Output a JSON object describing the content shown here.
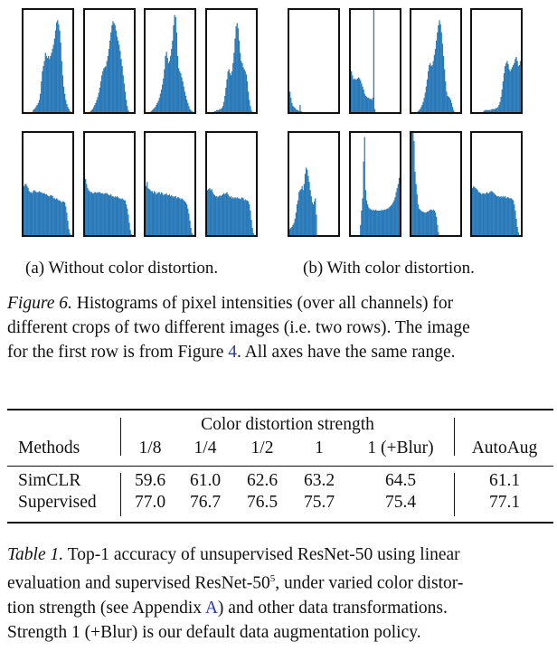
{
  "chart_data": {
    "type": "histogram-grid",
    "title": "Histograms of pixel intensities (over all channels)",
    "note": "All axes have the same range",
    "bar_color": "#2a7ab9",
    "panels": [
      {
        "group": "a",
        "row": 1,
        "col": 1,
        "values": [
          0,
          0,
          0,
          0,
          0,
          0,
          0,
          0,
          0,
          0.02,
          0.03,
          0.04,
          0.06,
          0.07,
          0.09,
          0.12,
          0.18,
          0.3,
          0.4,
          0.45,
          0.5,
          0.58,
          0.55,
          0.53,
          0.55,
          0.52,
          0.55,
          0.58,
          0.62,
          0.66,
          0.72,
          0.8,
          0.88,
          0.9,
          0.86,
          0.8,
          0.68,
          0.5,
          0.36,
          0.25,
          0.18,
          0.12,
          0.08,
          0.05,
          0.03,
          0.01,
          0,
          0
        ]
      },
      {
        "group": "a",
        "row": 1,
        "col": 2,
        "values": [
          0,
          0,
          0,
          0,
          0,
          0.01,
          0.02,
          0.03,
          0.05,
          0.07,
          0.09,
          0.12,
          0.15,
          0.19,
          0.24,
          0.3,
          0.36,
          0.4,
          0.43,
          0.44,
          0.45,
          0.5,
          0.55,
          0.62,
          0.7,
          0.78,
          0.85,
          0.89,
          0.87,
          0.85,
          0.8,
          0.74,
          0.7,
          0.66,
          0.6,
          0.52,
          0.45,
          0.36,
          0.28,
          0.2,
          0.12,
          0.06,
          0.02,
          0,
          0,
          0,
          0,
          0
        ]
      },
      {
        "group": "a",
        "row": 1,
        "col": 3,
        "values": [
          0,
          0,
          0,
          0,
          0,
          0.01,
          0.02,
          0.03,
          0.04,
          0.05,
          0.07,
          0.09,
          0.11,
          0.14,
          0.18,
          0.22,
          0.27,
          0.33,
          0.42,
          0.55,
          0.59,
          0.53,
          0.48,
          0.5,
          0.55,
          0.62,
          0.7,
          0.85,
          0.95,
          0.93,
          0.78,
          0.55,
          0.43,
          0.4,
          0.38,
          0.34,
          0.3,
          0.25,
          0.2,
          0.16,
          0.12,
          0.09,
          0.06,
          0.03,
          0.02,
          0.01,
          0,
          0
        ]
      },
      {
        "group": "a",
        "row": 1,
        "col": 4,
        "values": [
          0,
          0,
          0,
          0,
          0,
          0,
          0,
          0.01,
          0.01,
          0.02,
          0.02,
          0.02,
          0.03,
          0.03,
          0.04,
          0.06,
          0.1,
          0.16,
          0.24,
          0.32,
          0.4,
          0.42,
          0.38,
          0.36,
          0.4,
          0.48,
          0.58,
          0.72,
          0.84,
          0.87,
          0.82,
          0.7,
          0.58,
          0.5,
          0.48,
          0.44,
          0.42,
          0.4,
          0.37,
          0.3,
          0.2,
          0.12,
          0.06,
          0.02,
          0,
          0,
          0,
          0
        ]
      },
      {
        "group": "a",
        "row": 2,
        "col": 1,
        "values": [
          0.48,
          0.5,
          0.5,
          0.48,
          0.46,
          0.43,
          0.42,
          0.42,
          0.41,
          0.43,
          0.44,
          0.43,
          0.42,
          0.42,
          0.42,
          0.43,
          0.42,
          0.42,
          0.41,
          0.41,
          0.41,
          0.4,
          0.4,
          0.39,
          0.38,
          0.38,
          0.39,
          0.39,
          0.38,
          0.36,
          0.36,
          0.35,
          0.36,
          0.35,
          0.34,
          0.34,
          0.33,
          0.32,
          0.33,
          0.33,
          0.32,
          0.28,
          0.22,
          0.14,
          0.06,
          0.02,
          0,
          0
        ]
      },
      {
        "group": "a",
        "row": 2,
        "col": 2,
        "values": [
          0.55,
          0.5,
          0.46,
          0.44,
          0.43,
          0.42,
          0.42,
          0.41,
          0.41,
          0.42,
          0.42,
          0.41,
          0.42,
          0.42,
          0.42,
          0.41,
          0.41,
          0.41,
          0.4,
          0.41,
          0.41,
          0.41,
          0.4,
          0.39,
          0.39,
          0.4,
          0.38,
          0.38,
          0.37,
          0.38,
          0.37,
          0.38,
          0.37,
          0.36,
          0.36,
          0.35,
          0.36,
          0.35,
          0.34,
          0.34,
          0.3,
          0.26,
          0.2,
          0.12,
          0.05,
          0.01,
          0,
          0
        ]
      },
      {
        "group": "a",
        "row": 2,
        "col": 3,
        "values": [
          0.48,
          0.52,
          0.46,
          0.45,
          0.44,
          0.43,
          0.43,
          0.41,
          0.43,
          0.42,
          0.4,
          0.41,
          0.42,
          0.42,
          0.4,
          0.42,
          0.41,
          0.39,
          0.4,
          0.4,
          0.41,
          0.39,
          0.39,
          0.4,
          0.38,
          0.39,
          0.38,
          0.37,
          0.38,
          0.38,
          0.36,
          0.37,
          0.37,
          0.36,
          0.35,
          0.36,
          0.35,
          0.34,
          0.33,
          0.32,
          0.3,
          0.26,
          0.21,
          0.14,
          0.07,
          0.02,
          0,
          0
        ]
      },
      {
        "group": "a",
        "row": 2,
        "col": 4,
        "values": [
          0.44,
          0.45,
          0.46,
          0.44,
          0.45,
          0.42,
          0.4,
          0.39,
          0.38,
          0.38,
          0.37,
          0.38,
          0.39,
          0.38,
          0.39,
          0.4,
          0.41,
          0.4,
          0.41,
          0.42,
          0.4,
          0.38,
          0.37,
          0.38,
          0.36,
          0.37,
          0.36,
          0.37,
          0.36,
          0.37,
          0.36,
          0.36,
          0.35,
          0.36,
          0.37,
          0.36,
          0.34,
          0.35,
          0.34,
          0.34,
          0.33,
          0.3,
          0.24,
          0.15,
          0.07,
          0.02,
          0,
          0
        ]
      },
      {
        "group": "b",
        "row": 1,
        "col": 1,
        "values": [
          0.2,
          0.14,
          0.09,
          0.06,
          0.05,
          0.04,
          0.03,
          0.02,
          0.02,
          0.01,
          0.07,
          0.01,
          0,
          0,
          0,
          0,
          0,
          0,
          0,
          0,
          0,
          0,
          0,
          0,
          0,
          0,
          0,
          0,
          0,
          0,
          0,
          0,
          0,
          0,
          0,
          0,
          0,
          0,
          0,
          0,
          0,
          0,
          0,
          0,
          0,
          0,
          0,
          0
        ]
      },
      {
        "group": "b",
        "row": 1,
        "col": 2,
        "values": [
          0.4,
          0.36,
          0.32,
          0.33,
          0.32,
          0.32,
          0.33,
          0.34,
          0.33,
          0.31,
          0.28,
          0.25,
          0.22,
          0.18,
          0.16,
          0.15,
          0.14,
          0.14,
          0.13,
          0.13,
          0.12,
          0.14,
          1.0,
          0.03,
          0,
          0,
          0,
          0,
          0,
          0,
          0,
          0,
          0,
          0,
          0,
          0,
          0,
          0,
          0,
          0,
          0,
          0,
          0,
          0,
          0,
          0,
          0,
          0
        ]
      },
      {
        "group": "b",
        "row": 1,
        "col": 3,
        "values": [
          0,
          0,
          0,
          0,
          0,
          0,
          0.01,
          0.02,
          0.03,
          0.05,
          0.07,
          0.1,
          0.14,
          0.19,
          0.25,
          0.32,
          0.4,
          0.46,
          0.48,
          0.45,
          0.46,
          0.5,
          0.56,
          0.62,
          0.7,
          0.78,
          0.85,
          0.9,
          0.86,
          0.78,
          0.67,
          0.55,
          0.42,
          0.3,
          0.2,
          0.16,
          0.15,
          0.14,
          0.12,
          0.09,
          0.05,
          0.02,
          0,
          0,
          0,
          0,
          0,
          0
        ]
      },
      {
        "group": "b",
        "row": 1,
        "col": 4,
        "values": [
          0,
          0,
          0,
          0,
          0,
          0,
          0,
          0,
          0,
          0,
          0,
          0.01,
          0.02,
          0.02,
          0.02,
          0.02,
          0.02,
          0.02,
          0.02,
          0.03,
          0.03,
          0.03,
          0.03,
          0.04,
          0.04,
          0.05,
          0.07,
          0.1,
          0.15,
          0.22,
          0.3,
          0.38,
          0.45,
          0.48,
          0.5,
          0.47,
          0.42,
          0.4,
          0.42,
          0.44,
          0.46,
          0.48,
          0.52,
          0.54,
          0.5,
          0.45,
          0.46,
          0.5
        ]
      },
      {
        "group": "b",
        "row": 2,
        "col": 1,
        "values": [
          0.06,
          0.07,
          0.08,
          0.1,
          0.12,
          0.16,
          0.22,
          0.3,
          0.34,
          0.42,
          0.44,
          0.45,
          0.48,
          0.44,
          0.5,
          0.6,
          0.66,
          0.64,
          0.58,
          0.52,
          0.44,
          0.38,
          0.32,
          0.3,
          0.33,
          0.36,
          0.2,
          0,
          0,
          0,
          0,
          0,
          0,
          0,
          0,
          0,
          0,
          0,
          0,
          0,
          0,
          0,
          0,
          0,
          0,
          0,
          0,
          0
        ]
      },
      {
        "group": "b",
        "row": 2,
        "col": 2,
        "values": [
          0,
          0,
          0,
          0,
          0,
          0,
          0,
          0,
          0,
          0.1,
          0.24,
          0.36,
          0.72,
          0.96,
          0.44,
          0.34,
          0.3,
          0.27,
          0.26,
          0.25,
          0.25,
          0.24,
          0.25,
          0.24,
          0.25,
          0.24,
          0.24,
          0.24,
          0.24,
          0.24,
          0.25,
          0.24,
          0.25,
          0.25,
          0.25,
          0.26,
          0.26,
          0.27,
          0.28,
          0.29,
          0.3,
          0.32,
          0.34,
          0.37,
          0.42,
          0.46,
          0.5,
          0.56
        ]
      },
      {
        "group": "b",
        "row": 2,
        "col": 3,
        "values": [
          1.0,
          1.0,
          0.92,
          0.62,
          0.5,
          0.4,
          0.3,
          0.26,
          0.25,
          0.24,
          0.23,
          0.23,
          0.22,
          0.22,
          0.22,
          0.23,
          0.23,
          0.24,
          0.25,
          0.25,
          0.24,
          0.25,
          0.24,
          0.22,
          0.18,
          0.1,
          0.03,
          0,
          0,
          0,
          0,
          0,
          0,
          0,
          0,
          0,
          0,
          0,
          0,
          0,
          0,
          0,
          0,
          0,
          0,
          0,
          0,
          0
        ]
      },
      {
        "group": "b",
        "row": 2,
        "col": 4,
        "values": [
          0.46,
          0.48,
          0.47,
          0.46,
          0.45,
          0.44,
          0.42,
          0.42,
          0.41,
          0.4,
          0.41,
          0.41,
          0.4,
          0.41,
          0.42,
          0.41,
          0.41,
          0.42,
          0.43,
          0.43,
          0.42,
          0.41,
          0.4,
          0.39,
          0.38,
          0.38,
          0.38,
          0.37,
          0.38,
          0.37,
          0.38,
          0.37,
          0.38,
          0.36,
          0.37,
          0.37,
          0.36,
          0.36,
          0.36,
          0.35,
          0.34,
          0.3,
          0.24,
          0.16,
          0.08,
          0.03,
          0,
          0
        ]
      }
    ]
  },
  "figure": {
    "subcaption_a": "(a) Without color distortion.",
    "subcaption_b": "(b) With color distortion.",
    "caption_label": "Figure 6.",
    "caption_line1": " Histograms of pixel intensities (over all channels) for",
    "caption_line2": "different crops of two different images (i.e. two rows). The image",
    "caption_line3a": "for the first row is from Figure ",
    "caption_ref": "4",
    "caption_line3b": ". All axes have the same range."
  },
  "table": {
    "group_header": "Color distortion strength",
    "columns": [
      "Methods",
      "1/8",
      "1/4",
      "1/2",
      "1",
      "1 (+Blur)",
      "AutoAug"
    ],
    "rows": [
      {
        "method": "SimCLR",
        "values": [
          "59.6",
          "61.0",
          "62.6",
          "63.2",
          "64.5",
          "61.1"
        ]
      },
      {
        "method": "Supervised",
        "values": [
          "77.0",
          "76.7",
          "76.5",
          "75.7",
          "75.4",
          "77.1"
        ]
      }
    ],
    "caption_label": "Table 1.",
    "caption_line1": " Top-1 accuracy of unsupervised ResNet-50 using linear",
    "caption_line2a": "evaluation and supervised ResNet-50",
    "caption_footnote": "5",
    "caption_line2b": ", under varied color distor-",
    "caption_line3a": "tion strength (see Appendix ",
    "caption_ref": "A",
    "caption_line3b": ") and other data transformations.",
    "caption_line4": "Strength 1 (+Blur) is our default data augmentation policy."
  }
}
